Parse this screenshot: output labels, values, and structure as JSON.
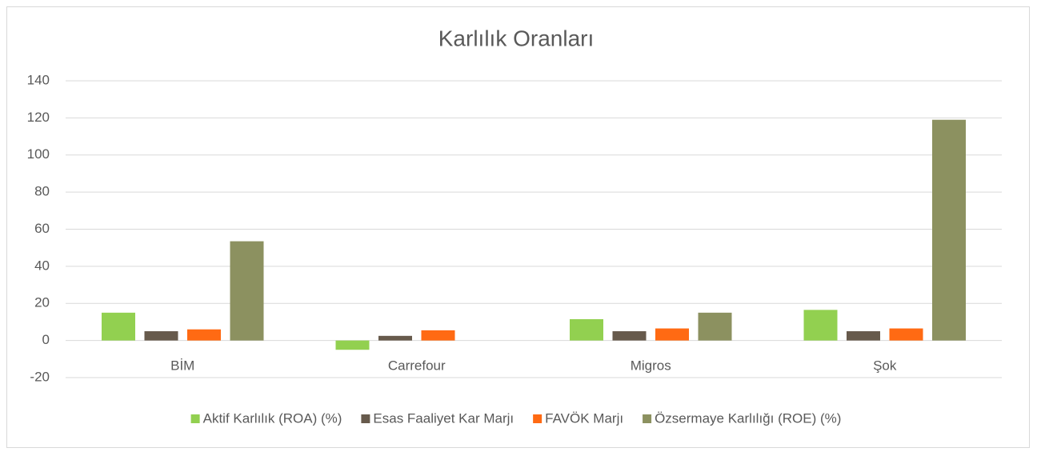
{
  "chart_data": {
    "type": "bar",
    "title": "Karlılık Oranları",
    "categories": [
      "BİM",
      "Carrefour",
      "Migros",
      "Şok"
    ],
    "series": [
      {
        "name": "Aktif Karlılık (ROA) (%)",
        "color": "#92d050",
        "values": [
          15,
          -5,
          11.5,
          16.5
        ]
      },
      {
        "name": "Esas Faaliyet Kar Marjı",
        "color": "#675a4c",
        "values": [
          5,
          2.5,
          5,
          5
        ]
      },
      {
        "name": "FAVÖK Marjı",
        "color": "#ff6a13",
        "values": [
          6,
          5.5,
          6.5,
          6.5
        ]
      },
      {
        "name": "Özsermaye Karlılığı (ROE) (%)",
        "color": "#8c9160",
        "values": [
          53.5,
          null,
          15,
          119
        ]
      }
    ],
    "ylim": [
      -20,
      140
    ],
    "yticks": [
      -20,
      0,
      20,
      40,
      60,
      80,
      100,
      120,
      140
    ],
    "grid": true,
    "legend": "bottom"
  }
}
